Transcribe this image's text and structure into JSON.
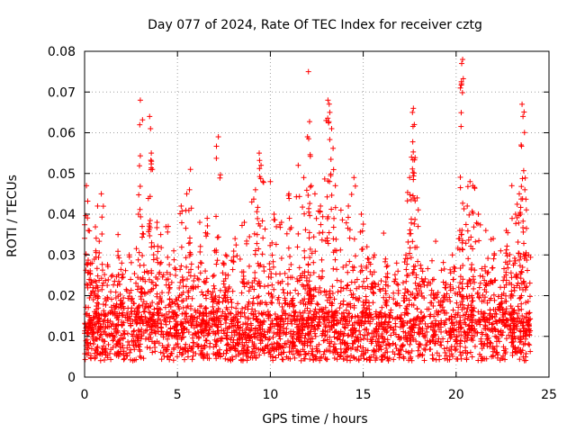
{
  "chart_data": {
    "type": "scatter",
    "title": "Day 077 of 2024, Rate Of TEC Index for receiver cztg",
    "xlabel": "GPS time / hours",
    "ylabel": "ROTI / TECUs",
    "xlim": [
      0,
      25
    ],
    "ylim": [
      0,
      0.08
    ],
    "xticks": [
      0,
      5,
      10,
      15,
      20,
      25
    ],
    "xtick_labels": [
      "0",
      "5",
      "10",
      "15",
      "20",
      "25"
    ],
    "yticks": [
      0,
      0.01,
      0.02,
      0.03,
      0.04,
      0.05,
      0.06,
      0.07,
      0.08
    ],
    "ytick_labels": [
      "0",
      "0.01",
      "0.02",
      "0.03",
      "0.04",
      "0.05",
      "0.06",
      "0.07",
      "0.08"
    ],
    "grid": true,
    "marker": "plus",
    "color": "#ff0000",
    "series": [
      {
        "name": "ROTI",
        "data_range_hours": [
          0,
          24
        ],
        "baseline_approx": 0.01,
        "points": [
          [
            0.1,
            0.047
          ],
          [
            0.2,
            0.036
          ],
          [
            0.4,
            0.028
          ],
          [
            0.6,
            0.031
          ],
          [
            0.7,
            0.042
          ],
          [
            0.9,
            0.045
          ],
          [
            1.5,
            0.025
          ],
          [
            1.8,
            0.035
          ],
          [
            2.0,
            0.028
          ],
          [
            2.4,
            0.03
          ],
          [
            2.9,
            0.04
          ],
          [
            3.0,
            0.068
          ],
          [
            3.1,
            0.037
          ],
          [
            3.5,
            0.064
          ],
          [
            3.55,
            0.061
          ],
          [
            3.6,
            0.053
          ],
          [
            3.65,
            0.051
          ],
          [
            3.9,
            0.038
          ],
          [
            4.1,
            0.035
          ],
          [
            4.5,
            0.037
          ],
          [
            4.8,
            0.031
          ],
          [
            5.2,
            0.042
          ],
          [
            5.5,
            0.045
          ],
          [
            5.7,
            0.051
          ],
          [
            6.2,
            0.038
          ],
          [
            6.6,
            0.039
          ],
          [
            7.0,
            0.031
          ],
          [
            7.2,
            0.059
          ],
          [
            7.6,
            0.03
          ],
          [
            8.1,
            0.034
          ],
          [
            8.6,
            0.038
          ],
          [
            9.0,
            0.043
          ],
          [
            9.2,
            0.046
          ],
          [
            9.4,
            0.055
          ],
          [
            9.5,
            0.052
          ],
          [
            9.6,
            0.048
          ],
          [
            10.0,
            0.048
          ],
          [
            10.2,
            0.04
          ],
          [
            10.6,
            0.038
          ],
          [
            11.0,
            0.045
          ],
          [
            11.5,
            0.052
          ],
          [
            11.8,
            0.049
          ],
          [
            12.0,
            0.059
          ],
          [
            12.05,
            0.075
          ],
          [
            12.2,
            0.047
          ],
          [
            12.4,
            0.045
          ],
          [
            12.7,
            0.042
          ],
          [
            13.0,
            0.063
          ],
          [
            13.1,
            0.068
          ],
          [
            13.2,
            0.065
          ],
          [
            13.3,
            0.061
          ],
          [
            13.5,
            0.047
          ],
          [
            13.8,
            0.041
          ],
          [
            14.2,
            0.042
          ],
          [
            14.5,
            0.049
          ],
          [
            14.9,
            0.04
          ],
          [
            15.2,
            0.032
          ],
          [
            15.6,
            0.03
          ],
          [
            16.2,
            0.029
          ],
          [
            16.8,
            0.028
          ],
          [
            17.3,
            0.03
          ],
          [
            17.5,
            0.049
          ],
          [
            17.6,
            0.054
          ],
          [
            17.65,
            0.065
          ],
          [
            17.7,
            0.066
          ],
          [
            17.75,
            0.062
          ],
          [
            17.9,
            0.044
          ],
          [
            18.2,
            0.026
          ],
          [
            18.8,
            0.024
          ],
          [
            19.4,
            0.022
          ],
          [
            19.8,
            0.03
          ],
          [
            20.2,
            0.036
          ],
          [
            20.3,
            0.077
          ],
          [
            20.35,
            0.078
          ],
          [
            20.6,
            0.042
          ],
          [
            20.75,
            0.048
          ],
          [
            20.9,
            0.047
          ],
          [
            21.2,
            0.04
          ],
          [
            21.6,
            0.036
          ],
          [
            22.0,
            0.034
          ],
          [
            22.4,
            0.031
          ],
          [
            22.7,
            0.036
          ],
          [
            23.0,
            0.047
          ],
          [
            23.2,
            0.04
          ],
          [
            23.4,
            0.045
          ],
          [
            23.5,
            0.057
          ],
          [
            23.55,
            0.067
          ],
          [
            23.6,
            0.064
          ],
          [
            23.7,
            0.046
          ],
          [
            23.9,
            0.03
          ]
        ]
      }
    ]
  }
}
